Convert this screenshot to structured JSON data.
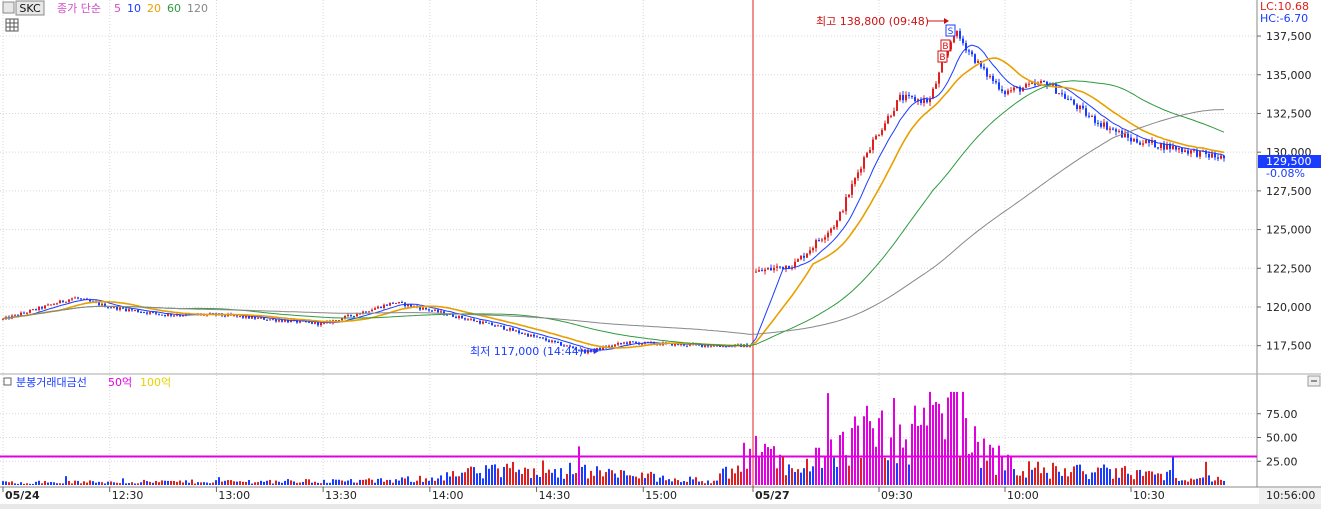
{
  "header": {
    "symbol": "SKC",
    "ma_label": "종가 단순",
    "ma_periods": [
      "5",
      "10",
      "20",
      "60",
      "120"
    ],
    "ma_colors": [
      "#d04bc8",
      "#1a3cff",
      "#e8a000",
      "#2e9a3e",
      "#888888"
    ],
    "limit_up": "LC:10.68",
    "limit_down": "HC:-6.70",
    "current_price": "129,500",
    "change_pct": "-0.08%"
  },
  "annotations": {
    "high": "최고 138,800 (09:48)",
    "low": "최저 117,000 (14:44)",
    "signal_letters": [
      "S",
      "B",
      "B"
    ]
  },
  "volume_panel": {
    "title": "분봉거래대금선",
    "ma1": "50억",
    "ma2": "100억",
    "ma1_color": "#e000e0",
    "ma2_color": "#e8d000",
    "y_ticks": [
      "75.00",
      "50.00",
      "25.00"
    ]
  },
  "time_axis": {
    "labels": [
      "05/24",
      "12:30",
      "13:00",
      "13:30",
      "14:00",
      "14:30",
      "15:00",
      "05/27",
      "09:30",
      "10:00",
      "10:30"
    ],
    "current_time": "10:56:00"
  },
  "chart_data": {
    "type": "candlestick",
    "title": "",
    "ylim": [
      115800,
      139700
    ],
    "y_ticks": [
      "137,500",
      "135,000",
      "132,500",
      "130,000",
      "127,500",
      "125,000",
      "122,500",
      "120,000",
      "117,500"
    ],
    "high": 138800,
    "low": 117000,
    "last": 129500,
    "price_anchors": [
      [
        "05/24 12:00",
        119200
      ],
      [
        "05/24 12:20",
        120600
      ],
      [
        "05/24 12:30",
        120000
      ],
      [
        "05/24 12:45",
        119500
      ],
      [
        "05/24 13:00",
        119500
      ],
      [
        "05/24 13:30",
        118900
      ],
      [
        "05/24 13:50",
        120300
      ],
      [
        "05/24 14:00",
        119800
      ],
      [
        "05/24 14:20",
        118700
      ],
      [
        "05/24 14:44",
        117100
      ],
      [
        "05/24 14:55",
        117700
      ],
      [
        "05/24 15:20",
        117500
      ],
      [
        "05/27 09:00",
        122200
      ],
      [
        "05/27 09:10",
        122800
      ],
      [
        "05/27 09:20",
        125500
      ],
      [
        "05/27 09:27",
        130000
      ],
      [
        "05/27 09:35",
        133500
      ],
      [
        "05/27 09:42",
        133300
      ],
      [
        "05/27 09:48",
        137800
      ],
      [
        "05/27 09:55",
        135200
      ],
      [
        "05/27 10:00",
        133900
      ],
      [
        "05/27 10:10",
        134500
      ],
      [
        "05/27 10:20",
        132300
      ],
      [
        "05/27 10:30",
        130800
      ],
      [
        "05/27 10:40",
        130300
      ],
      [
        "05/27 10:50",
        129700
      ],
      [
        "05/27 10:56",
        129500
      ]
    ],
    "volume_anchors": [
      [
        "05/24 12:00",
        3
      ],
      [
        "05/24 13:50",
        5
      ],
      [
        "05/24 14:30",
        20
      ],
      [
        "05/24 15:20",
        4
      ],
      [
        "05/27 09:00",
        40
      ],
      [
        "05/27 09:10",
        25
      ],
      [
        "05/27 09:20",
        40
      ],
      [
        "05/27 09:30",
        65
      ],
      [
        "05/27 09:40",
        60
      ],
      [
        "05/27 09:48",
        92
      ],
      [
        "05/27 09:55",
        35
      ],
      [
        "05/27 10:05",
        18
      ],
      [
        "05/27 10:30",
        14
      ],
      [
        "05/27 10:56",
        6
      ]
    ],
    "volume_ylim": [
      0,
      100
    ]
  }
}
